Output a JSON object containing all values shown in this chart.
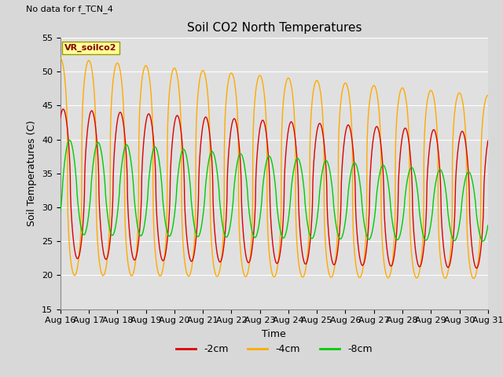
{
  "title": "Soil CO2 North Temperatures",
  "top_left_note": "No data for f_TCN_4",
  "ylabel": "Soil Temperatures (C)",
  "xlabel": "Time",
  "ylim": [
    15,
    55
  ],
  "xtick_labels": [
    "Aug 16",
    "Aug 17",
    "Aug 18",
    "Aug 19",
    "Aug 20",
    "Aug 21",
    "Aug 22",
    "Aug 23",
    "Aug 24",
    "Aug 25",
    "Aug 26",
    "Aug 27",
    "Aug 28",
    "Aug 29",
    "Aug 30",
    "Aug 31"
  ],
  "ytick_values": [
    15,
    20,
    25,
    30,
    35,
    40,
    45,
    50,
    55
  ],
  "legend_entries": [
    "-2cm",
    "-4cm",
    "-8cm"
  ],
  "legend_colors": [
    "#dd0000",
    "#ffaa00",
    "#00cc00"
  ],
  "line_colors": [
    "#dd0000",
    "#ffaa00",
    "#00cc00"
  ],
  "background_color": "#e0e0e0",
  "box_color": "#ffff99",
  "box_text": "VR_soilco2",
  "box_text_color": "#880000",
  "title_fontsize": 11,
  "label_fontsize": 9,
  "tick_fontsize": 8,
  "note_fontsize": 8,
  "figsize": [
    6.4,
    4.8
  ],
  "dpi": 100
}
